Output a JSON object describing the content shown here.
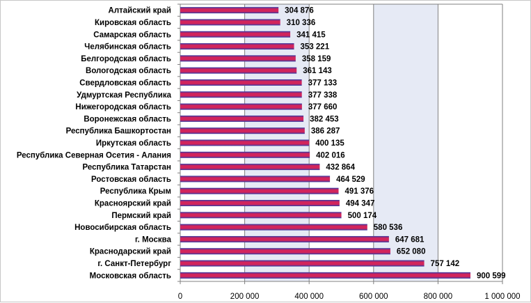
{
  "chart_data": {
    "type": "bar",
    "orientation": "horizontal",
    "title": "",
    "xlabel": "",
    "ylabel": "",
    "categories": [
      "Алтайский край",
      "Кировская область",
      "Самарская область",
      "Челябинская область",
      "Белгородская область",
      "Вологодская область",
      "Свердловская область",
      "Удмуртская Республика",
      "Нижегородская область",
      "Воронежская область",
      "Республика Башкортостан",
      "Иркутская область",
      "Республика Северная Осетия - Алания",
      "Республика Татарстан",
      "Ростовская область",
      "Республика Крым",
      "Красноярский край",
      "Пермский край",
      "Новосибирская область",
      "г. Москва",
      "Краснодарский край",
      "г. Санкт-Петербург",
      "Московская область"
    ],
    "values": [
      304876,
      310336,
      341415,
      353221,
      358159,
      361143,
      377133,
      377338,
      377660,
      382453,
      386287,
      400135,
      402016,
      432864,
      464529,
      491376,
      494347,
      500174,
      580536,
      647681,
      652080,
      757142,
      900599
    ],
    "value_labels": [
      "304 876",
      "310 336",
      "341 415",
      "353 221",
      "358 159",
      "361 143",
      "377 133",
      "377 338",
      "377 660",
      "382 453",
      "386 287",
      "400 135",
      "402 016",
      "432 864",
      "464 529",
      "491 376",
      "494 347",
      "500 174",
      "580 536",
      "647 681",
      "652 080",
      "757 142",
      "900 599"
    ],
    "xlim": [
      0,
      1000000
    ],
    "x_ticks": [
      {
        "value": 0,
        "label": "0"
      },
      {
        "value": 200000,
        "label": "200 000"
      },
      {
        "value": 400000,
        "label": "400 000"
      },
      {
        "value": 600000,
        "label": "600 000"
      },
      {
        "value": 800000,
        "label": "800 000"
      },
      {
        "value": 1000000,
        "label": "1 000 000"
      }
    ],
    "grid": true,
    "legend": "none",
    "colors": {
      "bar_outer": "#2f3aa6",
      "bar_inner": "#d2245c",
      "plot_bg_shaded": "#e6eaf5",
      "gridline": "#7f7f7f"
    }
  }
}
